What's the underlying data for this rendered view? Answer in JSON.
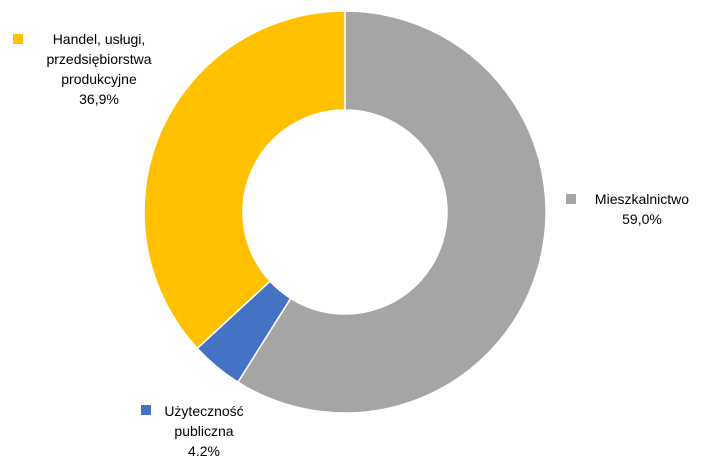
{
  "chart_data": {
    "type": "pie",
    "donut": true,
    "slices": [
      {
        "name": "Mieszkalnictwo",
        "value": 59.0,
        "label": "59,0%",
        "color": "#A5A5A5"
      },
      {
        "name": "Użyteczność publiczna",
        "value": 4.2,
        "label": "4.2%",
        "color": "#4472C4"
      },
      {
        "name": "Handel, usługi, przedsiębiorstwa produkcyjne",
        "value": 36.9,
        "label": "36,9%",
        "color": "#FFC000"
      }
    ],
    "label_lines": [
      [
        "Mieszkalnictwo"
      ],
      [
        "Użyteczność",
        "publiczna"
      ],
      [
        "Handel, usługi,",
        "przedsiębiorstwa",
        "produkcyjne"
      ]
    ],
    "legend": "none",
    "data_labels": "outside, with category names"
  }
}
